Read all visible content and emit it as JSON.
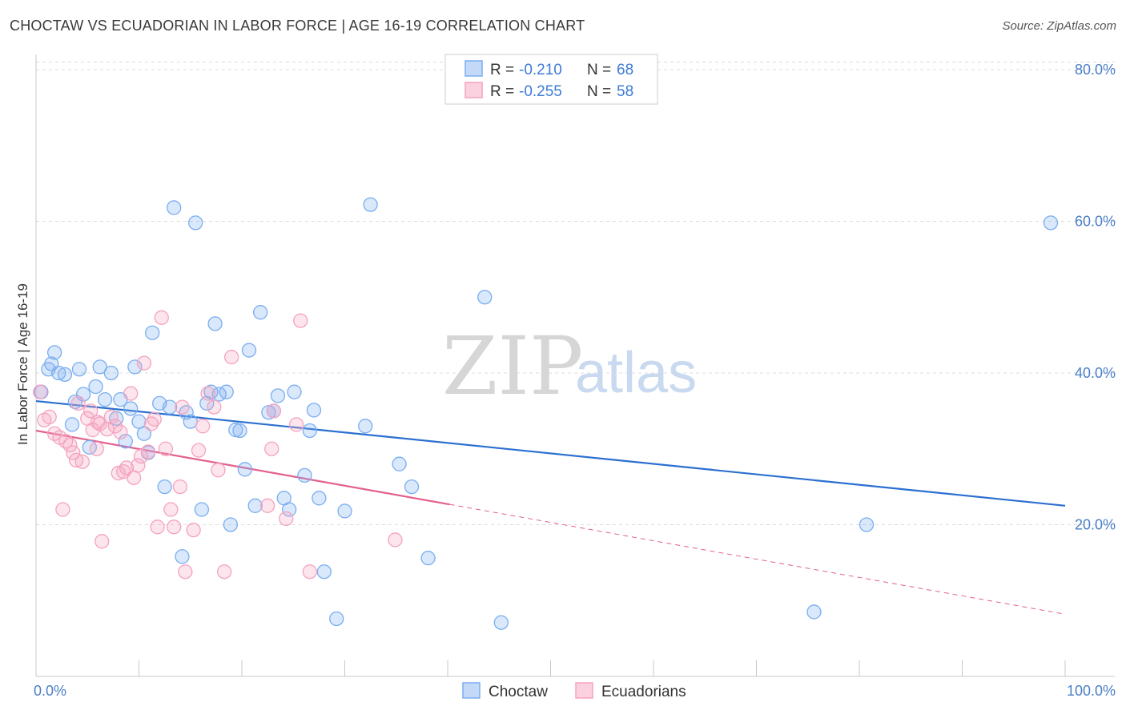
{
  "title": "CHOCTAW VS ECUADORIAN IN LABOR FORCE | AGE 16-19 CORRELATION CHART",
  "source": "Source: ZipAtlas.com",
  "watermark": {
    "zip": "ZIP",
    "atlas": "atlas"
  },
  "chart_data": {
    "type": "scatter",
    "ylabel": "In Labor Force | Age 16-19",
    "xlim": [
      0,
      100
    ],
    "ylim": [
      0,
      82
    ],
    "x_tick_labels": {
      "left": "0.0%",
      "right": "100.0%"
    },
    "y_ticks": [
      {
        "value": 20,
        "label": "20.0%"
      },
      {
        "value": 40,
        "label": "40.0%"
      },
      {
        "value": 60,
        "label": "60.0%"
      },
      {
        "value": 80,
        "label": "80.0%"
      }
    ],
    "grid": true,
    "legend": {
      "placement": "top-center",
      "entries": [
        {
          "r_label": "R =",
          "r_value": "-0.210",
          "n_label": "N =",
          "n_value": "68"
        },
        {
          "r_label": "R =",
          "r_value": "-0.255",
          "n_label": "N =",
          "n_value": "58"
        }
      ]
    },
    "series": [
      {
        "name": "Choctaw",
        "color": "#7aaef0",
        "line_color": "#2b6fd1",
        "trend": {
          "x0": 0,
          "y0": 36.3,
          "x1": 100,
          "y1": 22.5,
          "solid_until": 100
        },
        "points": [
          [
            0.5,
            37.5
          ],
          [
            1.2,
            40.5
          ],
          [
            1.5,
            41.2
          ],
          [
            1.8,
            42.7
          ],
          [
            2.2,
            40.0
          ],
          [
            2.8,
            39.8
          ],
          [
            3.5,
            33.2
          ],
          [
            3.8,
            36.2
          ],
          [
            4.2,
            40.5
          ],
          [
            4.6,
            37.2
          ],
          [
            5.2,
            30.2
          ],
          [
            5.8,
            38.2
          ],
          [
            6.2,
            40.8
          ],
          [
            6.7,
            36.5
          ],
          [
            7.3,
            40.0
          ],
          [
            7.8,
            34.0
          ],
          [
            8.2,
            36.5
          ],
          [
            8.7,
            31.0
          ],
          [
            9.2,
            35.3
          ],
          [
            9.6,
            40.8
          ],
          [
            10.0,
            33.6
          ],
          [
            10.5,
            32.0
          ],
          [
            10.9,
            29.5
          ],
          [
            11.3,
            45.3
          ],
          [
            12.0,
            36.0
          ],
          [
            12.5,
            25.0
          ],
          [
            13.0,
            35.5
          ],
          [
            13.4,
            61.8
          ],
          [
            14.2,
            15.8
          ],
          [
            14.6,
            34.8
          ],
          [
            15.0,
            33.6
          ],
          [
            15.5,
            59.8
          ],
          [
            16.1,
            22.0
          ],
          [
            16.6,
            36.0
          ],
          [
            17.0,
            37.5
          ],
          [
            17.4,
            46.5
          ],
          [
            17.8,
            37.2
          ],
          [
            18.5,
            37.5
          ],
          [
            18.9,
            20.0
          ],
          [
            19.4,
            32.5
          ],
          [
            19.8,
            32.4
          ],
          [
            20.3,
            27.3
          ],
          [
            20.7,
            43.0
          ],
          [
            21.3,
            22.5
          ],
          [
            21.8,
            48.0
          ],
          [
            22.6,
            34.8
          ],
          [
            23.1,
            35.0
          ],
          [
            23.5,
            37.0
          ],
          [
            24.1,
            23.5
          ],
          [
            24.6,
            22.0
          ],
          [
            25.1,
            37.5
          ],
          [
            26.1,
            26.5
          ],
          [
            26.6,
            32.4
          ],
          [
            27.0,
            35.1
          ],
          [
            27.5,
            23.5
          ],
          [
            28.0,
            13.8
          ],
          [
            29.2,
            7.6
          ],
          [
            30.0,
            21.8
          ],
          [
            32.0,
            33.0
          ],
          [
            32.5,
            62.2
          ],
          [
            35.3,
            28.0
          ],
          [
            36.5,
            25.0
          ],
          [
            38.1,
            15.6
          ],
          [
            43.6,
            50.0
          ],
          [
            45.2,
            7.1
          ],
          [
            75.6,
            8.5
          ],
          [
            80.7,
            20.0
          ],
          [
            98.6,
            59.8
          ]
        ]
      },
      {
        "name": "Ecuadorians",
        "color": "#f4a3bf",
        "line_color": "#e3608f",
        "trend": {
          "x0": 0,
          "y0": 32.4,
          "x1": 100,
          "y1": 8.2,
          "solid_until": 40.2
        },
        "points": [
          [
            0.4,
            37.5
          ],
          [
            0.8,
            33.8
          ],
          [
            1.3,
            34.2
          ],
          [
            1.8,
            32.0
          ],
          [
            2.3,
            31.5
          ],
          [
            2.6,
            22.0
          ],
          [
            2.9,
            31.0
          ],
          [
            3.3,
            30.5
          ],
          [
            3.6,
            29.5
          ],
          [
            3.9,
            28.5
          ],
          [
            4.1,
            36.0
          ],
          [
            4.5,
            28.3
          ],
          [
            5.0,
            34.0
          ],
          [
            5.3,
            35.0
          ],
          [
            5.5,
            32.5
          ],
          [
            5.9,
            30.0
          ],
          [
            6.2,
            33.3
          ],
          [
            6.4,
            17.8
          ],
          [
            6.9,
            32.6
          ],
          [
            7.3,
            34.2
          ],
          [
            7.7,
            33.0
          ],
          [
            8.0,
            26.8
          ],
          [
            8.2,
            32.2
          ],
          [
            8.5,
            27.0
          ],
          [
            8.8,
            27.5
          ],
          [
            9.2,
            37.3
          ],
          [
            9.5,
            26.2
          ],
          [
            9.9,
            27.8
          ],
          [
            10.2,
            29.0
          ],
          [
            10.5,
            41.3
          ],
          [
            10.9,
            29.6
          ],
          [
            11.2,
            33.3
          ],
          [
            11.5,
            33.9
          ],
          [
            11.8,
            19.7
          ],
          [
            12.2,
            47.3
          ],
          [
            12.6,
            30.0
          ],
          [
            13.1,
            22.0
          ],
          [
            13.4,
            19.7
          ],
          [
            14.0,
            25.0
          ],
          [
            14.5,
            13.8
          ],
          [
            15.3,
            19.3
          ],
          [
            15.8,
            29.8
          ],
          [
            16.2,
            33.0
          ],
          [
            16.7,
            37.3
          ],
          [
            17.3,
            35.5
          ],
          [
            17.7,
            27.2
          ],
          [
            18.3,
            13.8
          ],
          [
            19.0,
            42.1
          ],
          [
            22.5,
            22.5
          ],
          [
            22.9,
            30.0
          ],
          [
            23.1,
            35.0
          ],
          [
            24.3,
            20.8
          ],
          [
            25.3,
            33.2
          ],
          [
            25.7,
            46.9
          ],
          [
            26.6,
            13.8
          ],
          [
            34.9,
            18.0
          ],
          [
            14.2,
            35.5
          ],
          [
            6.0,
            33.5
          ]
        ]
      }
    ]
  }
}
